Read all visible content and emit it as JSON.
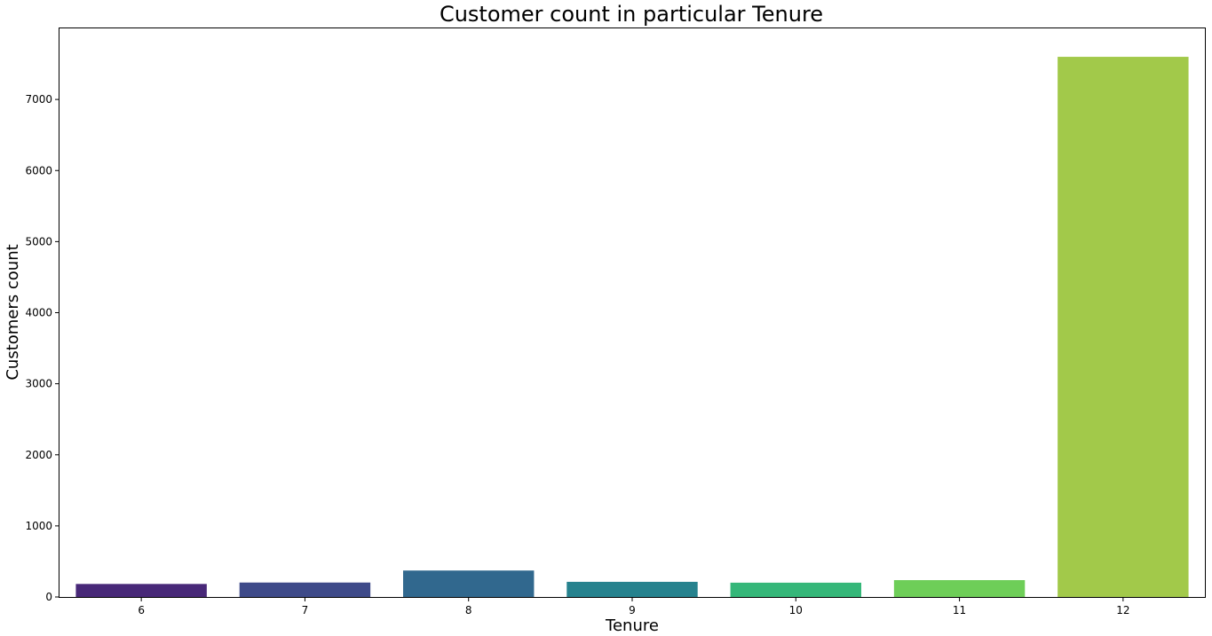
{
  "chart_data": {
    "type": "bar",
    "title": "Customer count in particular Tenure",
    "xlabel": "Tenure",
    "ylabel": "Customers count",
    "categories": [
      "6",
      "7",
      "8",
      "9",
      "10",
      "11",
      "12"
    ],
    "values": [
      183,
      203,
      372,
      213,
      201,
      237,
      7600
    ],
    "ylim": [
      0,
      8000
    ],
    "yticks": [
      0,
      1000,
      2000,
      3000,
      4000,
      5000,
      6000,
      7000
    ],
    "colors": [
      "#482878",
      "#3e4a89",
      "#31688e",
      "#26828e",
      "#35b779",
      "#6ece58",
      "#a2c94a"
    ],
    "grid": false,
    "legend": "none"
  }
}
